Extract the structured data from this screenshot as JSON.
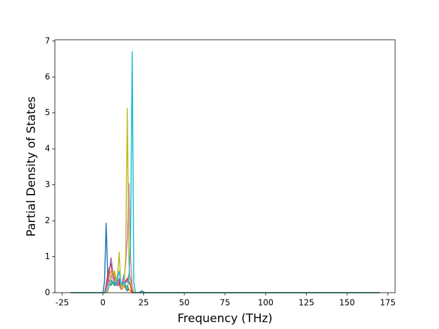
{
  "chart_data": {
    "type": "line",
    "xlabel": "Frequency (THz)",
    "ylabel": "Partial Density of States",
    "x": [
      -20,
      0,
      1,
      2,
      3,
      4,
      5,
      6,
      7,
      8,
      9,
      10,
      11,
      12,
      13,
      14,
      15,
      16,
      17,
      18,
      19,
      20,
      22,
      24,
      26,
      170
    ],
    "series": [
      {
        "color": "#1f77b4",
        "values": [
          0,
          0,
          0.3,
          1.93,
          0.4,
          0.3,
          0.35,
          0.3,
          0.25,
          0.2,
          0.3,
          0.35,
          0.2,
          0.3,
          0.5,
          0.1,
          0.05,
          0.1,
          0.05,
          0.02,
          0,
          0,
          0,
          0.05,
          0,
          0
        ]
      },
      {
        "color": "#2ca02c",
        "values": [
          0,
          0,
          0,
          0.1,
          0.2,
          0.3,
          0.2,
          0.3,
          0.2,
          0.3,
          0.2,
          0.25,
          0.1,
          0.2,
          0.3,
          0.2,
          0.1,
          0.1,
          0.05,
          0,
          0,
          0,
          0,
          0,
          0,
          0
        ]
      },
      {
        "color": "#ff7f0e",
        "values": [
          0,
          0,
          0,
          0.05,
          0.3,
          0.5,
          0.6,
          0.5,
          0.6,
          0.4,
          0.3,
          0.2,
          0.1,
          0.1,
          0.2,
          0.1,
          0.2,
          0.1,
          0.05,
          0,
          0,
          0,
          0,
          0,
          0,
          0
        ]
      },
      {
        "color": "#d62728",
        "values": [
          0,
          0,
          0,
          0.2,
          0.5,
          0.7,
          0.8,
          0.5,
          0.4,
          0.3,
          0.2,
          0.3,
          0.1,
          0.1,
          0.2,
          0.3,
          0.4,
          0.3,
          0.2,
          0,
          0,
          0,
          0,
          0,
          0,
          0
        ]
      },
      {
        "color": "#9467bd",
        "values": [
          0,
          0,
          0,
          0.1,
          0.3,
          0.6,
          0.97,
          0.6,
          0.3,
          0.2,
          0.3,
          0.4,
          0.2,
          0.3,
          0.4,
          0.3,
          0.3,
          0.5,
          0.4,
          0.1,
          0,
          0,
          0,
          0,
          0,
          0
        ]
      },
      {
        "color": "#e377c2",
        "values": [
          0,
          0,
          0,
          0.1,
          0.2,
          0.3,
          0.5,
          0.4,
          0.3,
          0.2,
          0.3,
          0.2,
          0.1,
          0.2,
          0.4,
          0.8,
          1.5,
          3.03,
          1.0,
          0.2,
          0,
          0,
          0,
          0,
          0,
          0
        ]
      },
      {
        "color": "#bcbd22",
        "values": [
          0,
          0,
          0,
          0,
          0.05,
          0.2,
          0.4,
          0.6,
          0.5,
          0.3,
          0.5,
          1.13,
          0.2,
          0.1,
          0.2,
          1.0,
          5.13,
          0.8,
          0.3,
          0.1,
          0,
          0,
          0,
          0,
          0,
          0
        ]
      },
      {
        "color": "#17becf",
        "values": [
          0,
          0,
          0,
          0.05,
          0.1,
          0.2,
          0.3,
          0.25,
          0.3,
          0.2,
          0.4,
          0.6,
          0.3,
          0.2,
          0.3,
          0.2,
          0.1,
          0.4,
          1.5,
          6.7,
          0.3,
          0,
          0,
          0,
          0,
          0
        ]
      }
    ],
    "xlim": [
      -29.5,
      179.5
    ],
    "xticks": [
      -25,
      0,
      25,
      50,
      75,
      100,
      125,
      150,
      175
    ],
    "ylim": [
      0,
      7.035
    ],
    "yticks": [
      0,
      1,
      2,
      3,
      4,
      5,
      6,
      7
    ]
  }
}
